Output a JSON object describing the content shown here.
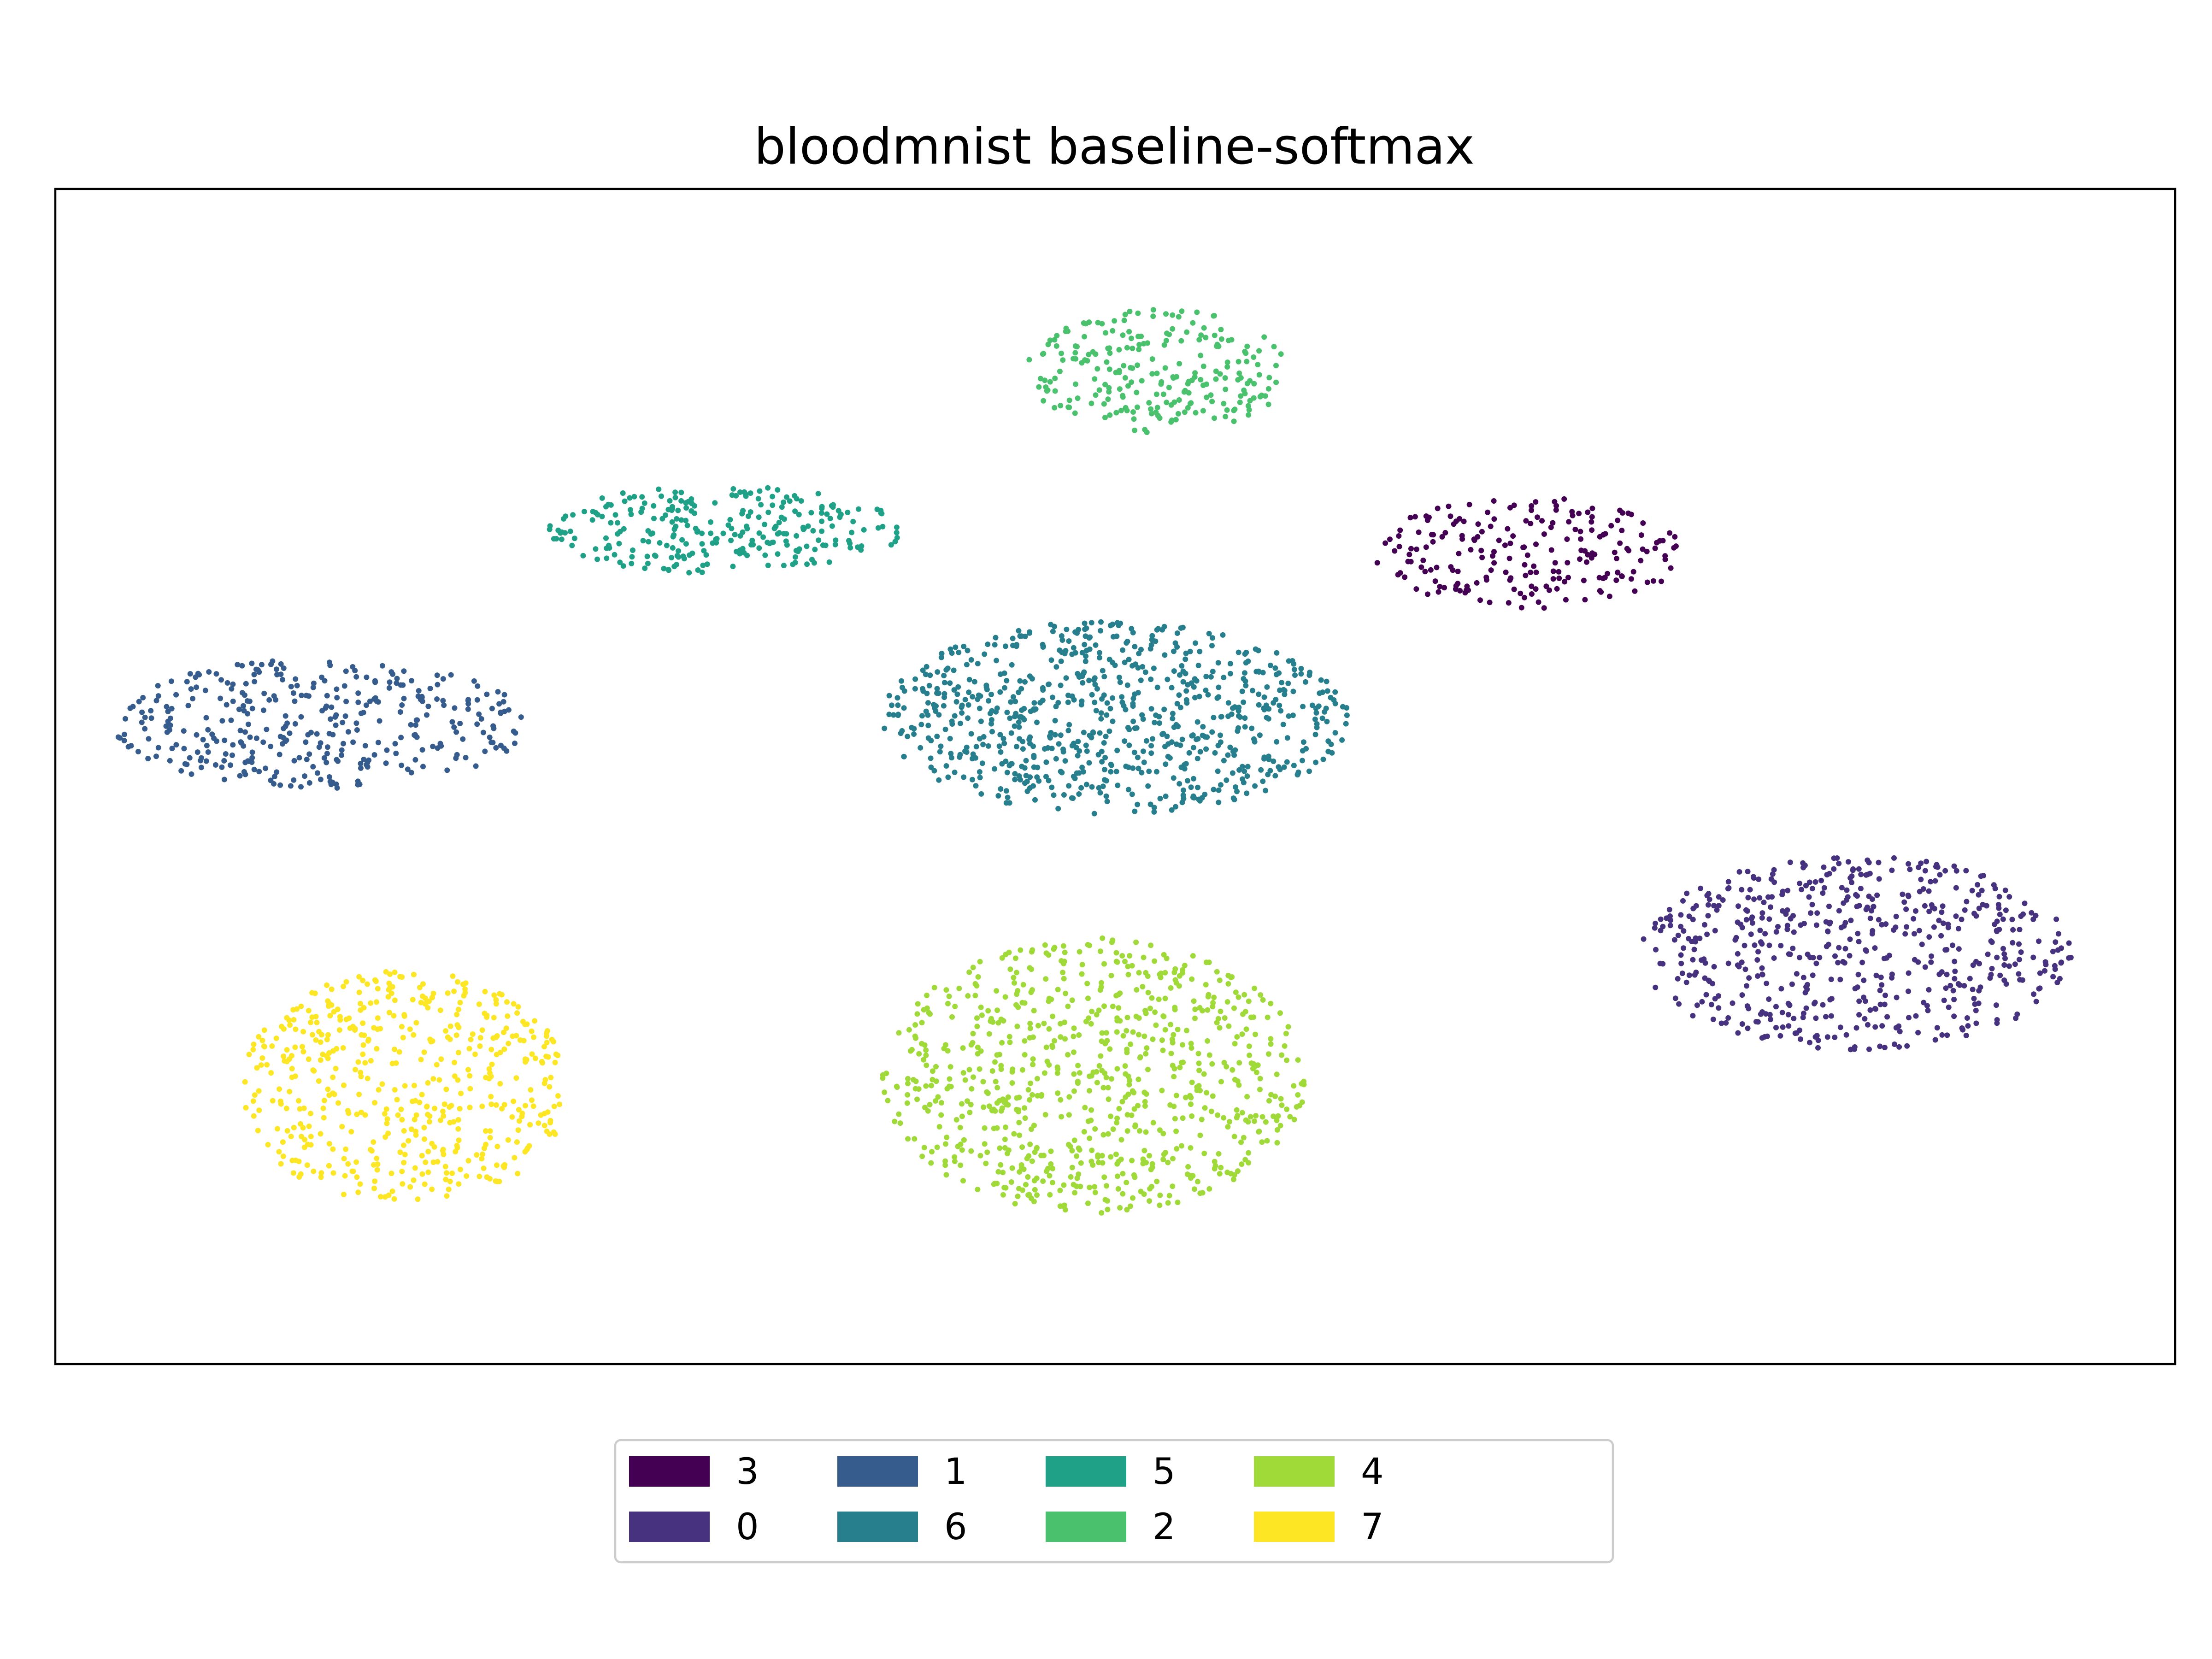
{
  "chart_data": {
    "type": "scatter",
    "title": "bloodmnist baseline-softmax",
    "xlabel": "",
    "ylabel": "",
    "xlim": [
      -10,
      10
    ],
    "ylim": [
      -10,
      10
    ],
    "grid": false,
    "axes_ticks": false,
    "legend_position": "bottom-center",
    "legend_columns": 5,
    "marker": "small-dot",
    "legend": [
      {
        "label": "3",
        "color": "#440154"
      },
      {
        "label": "0",
        "color": "#46327e"
      },
      {
        "label": "1",
        "color": "#365c8d"
      },
      {
        "label": "6",
        "color": "#277f8e"
      },
      {
        "label": "5",
        "color": "#1fa187"
      },
      {
        "label": "2",
        "color": "#4ac16d"
      },
      {
        "label": "4",
        "color": "#a0da39"
      },
      {
        "label": "7",
        "color": "#fde725"
      }
    ],
    "series": [
      {
        "name": "3",
        "color": "#440154",
        "cluster": {
          "cx": 3.9,
          "cy": 3.8,
          "rx": 1.45,
          "ry": 0.95,
          "n": 210
        }
      },
      {
        "name": "0",
        "color": "#46327e",
        "cluster": {
          "cx": 7.0,
          "cy": -3.0,
          "rx": 2.05,
          "ry": 1.65,
          "n": 560
        }
      },
      {
        "name": "1",
        "color": "#365c8d",
        "cluster": {
          "cx": -7.5,
          "cy": 0.9,
          "rx": 1.95,
          "ry": 1.1,
          "n": 360
        }
      },
      {
        "name": "6",
        "color": "#277f8e",
        "cluster": {
          "cx": 0.0,
          "cy": 1.0,
          "rx": 2.2,
          "ry": 1.65,
          "n": 760
        }
      },
      {
        "name": "5",
        "color": "#1fa187",
        "cluster": {
          "cx": -3.7,
          "cy": 4.2,
          "rx": 1.7,
          "ry": 0.75,
          "n": 270
        }
      },
      {
        "name": "2",
        "color": "#4ac16d",
        "cluster": {
          "cx": 0.4,
          "cy": 6.9,
          "rx": 1.25,
          "ry": 1.05,
          "n": 240
        }
      },
      {
        "name": "4",
        "color": "#a0da39",
        "cluster": {
          "cx": -0.2,
          "cy": -5.1,
          "rx": 2.0,
          "ry": 2.35,
          "n": 780
        }
      },
      {
        "name": "7",
        "color": "#fde725",
        "cluster": {
          "cx": -6.7,
          "cy": -5.3,
          "rx": 1.55,
          "ry": 2.0,
          "n": 510
        }
      }
    ]
  }
}
